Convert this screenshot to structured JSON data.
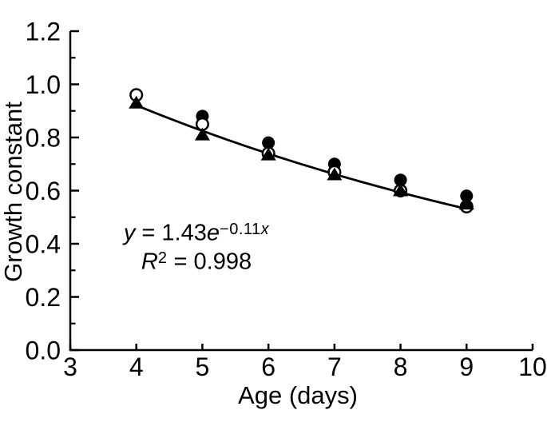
{
  "chart_data": {
    "type": "scatter",
    "title": "",
    "xlabel": "Age (days)",
    "ylabel": "Growth constant",
    "x_axis": {
      "label": "Age (days)",
      "range": [
        3,
        10
      ],
      "tick_values": [
        3,
        4,
        5,
        6,
        7,
        8,
        9,
        10
      ],
      "tick_labels": [
        "3",
        "4",
        "5",
        "6",
        "7",
        "8",
        "9",
        "10"
      ]
    },
    "y_axis": {
      "label": "Growth constant",
      "range": [
        0,
        1.2
      ],
      "major_tick_values": [
        0,
        0.2,
        0.4,
        0.6,
        0.8,
        1.0,
        1.2
      ],
      "major_tick_labels": [
        "0.0",
        "0.2",
        "0.4",
        "0.6",
        "0.8",
        "1.0",
        "1.2"
      ],
      "minor_tick_values": [
        0.1,
        0.3,
        0.5,
        0.7,
        0.9,
        1.1
      ]
    },
    "series": [
      {
        "name": "filled-circles",
        "marker": "circle-filled",
        "x": [
          5,
          6,
          7,
          8,
          9
        ],
        "y": [
          0.88,
          0.78,
          0.7,
          0.64,
          0.58
        ]
      },
      {
        "name": "open-circles",
        "marker": "circle-open",
        "x": [
          4,
          5,
          6,
          7,
          8,
          9
        ],
        "y": [
          0.96,
          0.85,
          0.74,
          0.67,
          0.6,
          0.54
        ]
      },
      {
        "name": "filled-triangles",
        "marker": "triangle-filled",
        "x": [
          4,
          5,
          6,
          7,
          8,
          9
        ],
        "y": [
          0.93,
          0.81,
          0.735,
          0.66,
          0.6,
          0.55
        ]
      }
    ],
    "fit_line": {
      "model": "exponential",
      "a": 1.43,
      "b": -0.11,
      "x_start": 4,
      "x_end": 9,
      "r_squared": 0.998
    },
    "annotation": {
      "equation": {
        "variable": "y",
        "equals": " = ",
        "coefficient": "1.43",
        "base": "e",
        "exponent": "−0.11",
        "exponent_variable": "x"
      },
      "r2": {
        "symbol": "R",
        "superscript": "2",
        "rest": " = 0.998"
      }
    },
    "legend": "none",
    "grid": false,
    "colors": {
      "foreground": "#000000",
      "background": "#ffffff"
    }
  }
}
